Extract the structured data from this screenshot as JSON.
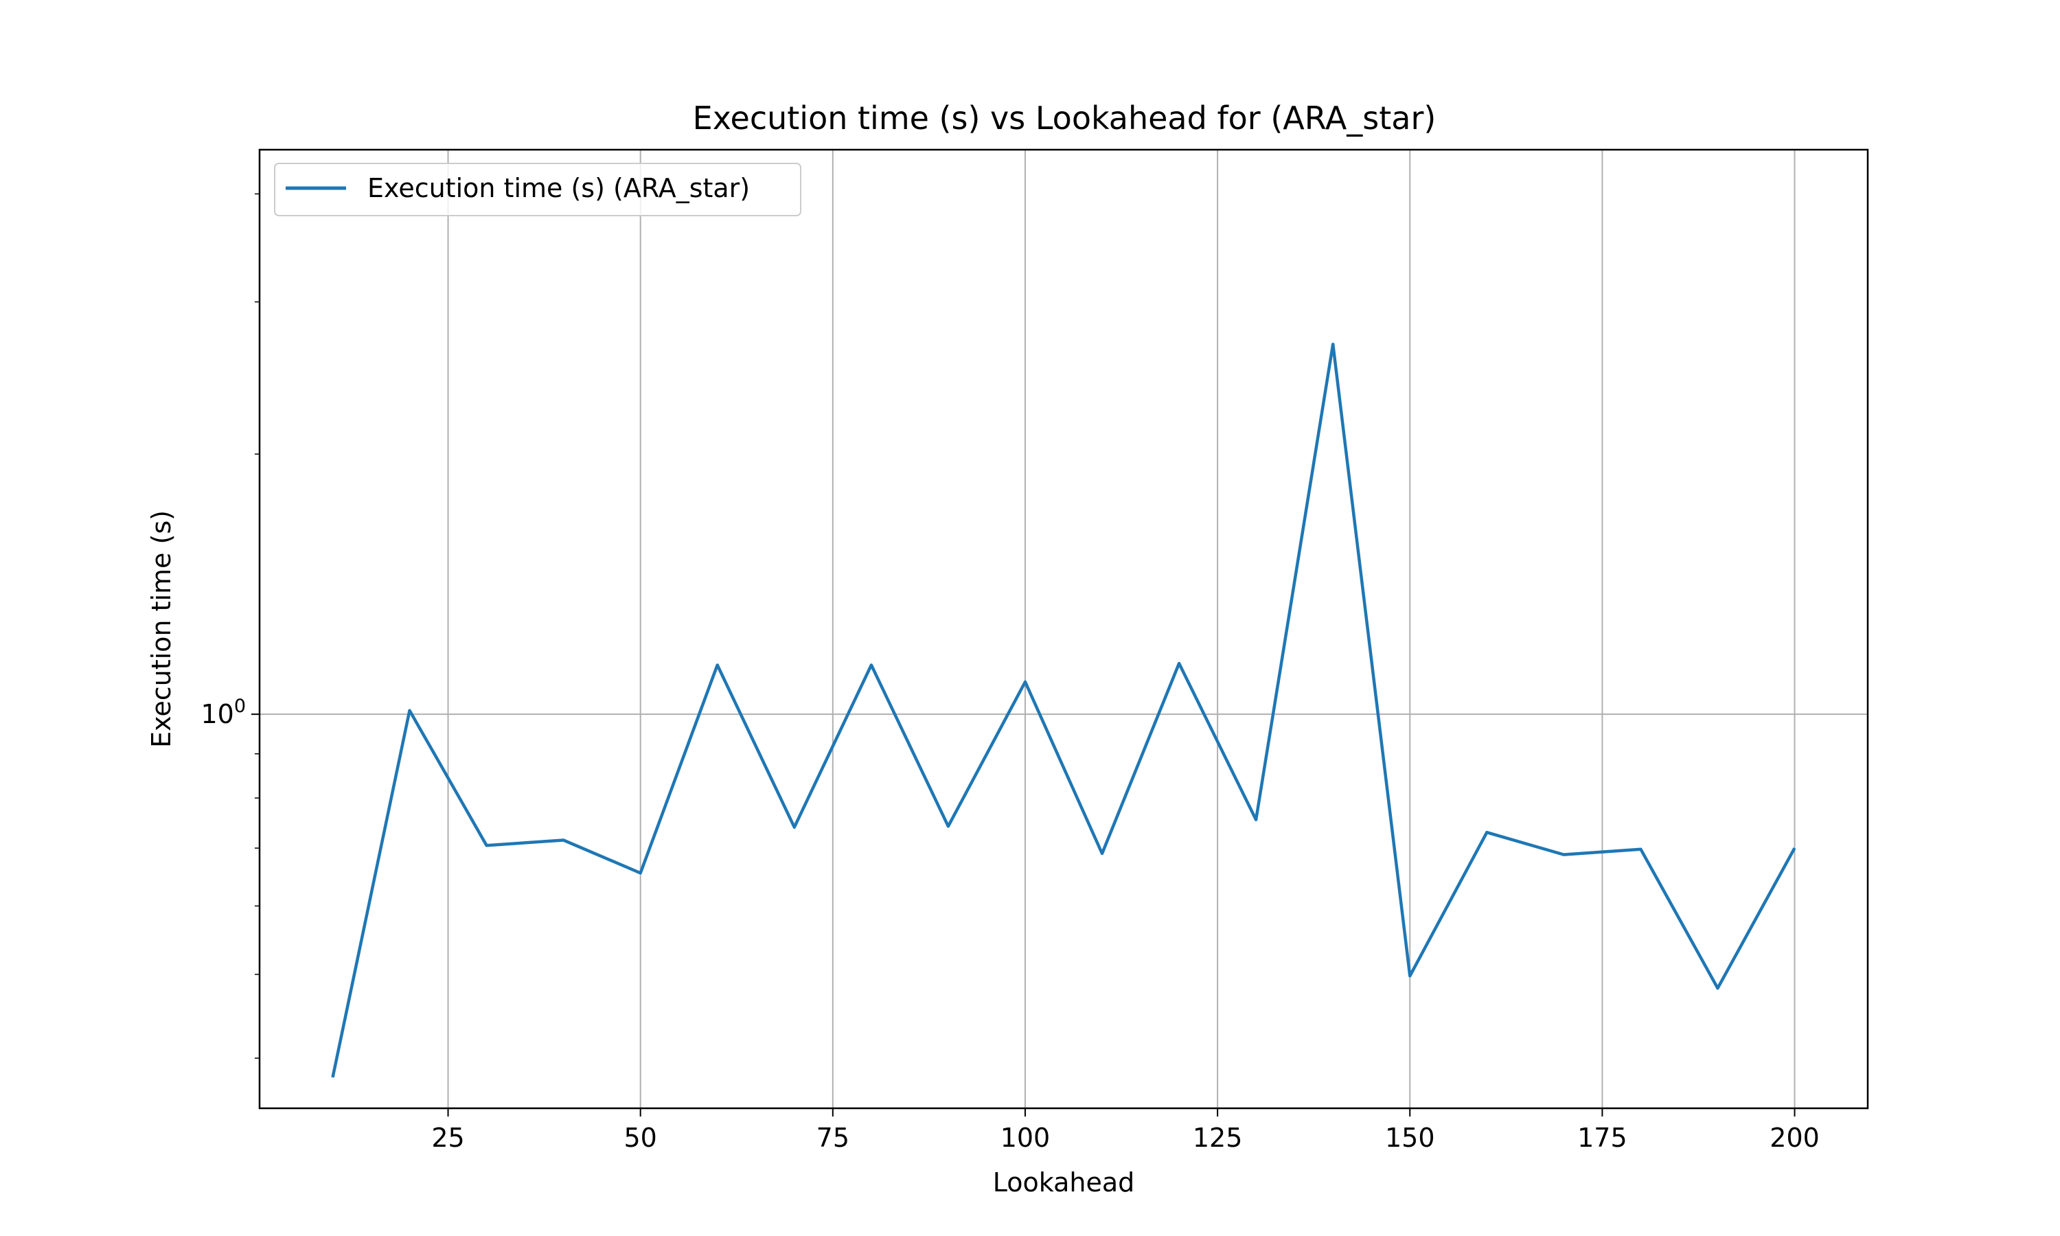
{
  "chart_data": {
    "type": "line",
    "title": "Execution time (s) vs Lookahead for  (ARA_star)",
    "xlabel": "Lookahead",
    "ylabel": "Execution time (s)",
    "yscale": "log",
    "xlim": [
      0.5,
      209.5
    ],
    "ylim": [
      0.35,
      4.5
    ],
    "xticks": [
      25,
      50,
      75,
      100,
      125,
      150,
      175,
      200
    ],
    "xtick_labels": [
      "25",
      "50",
      "75",
      "100",
      "125",
      "150",
      "175",
      "200"
    ],
    "yticks": [
      1
    ],
    "ytick_base": "10",
    "ytick_exponent": "0",
    "grid": true,
    "legend_position": "upper-left",
    "series": [
      {
        "name": "Execution time (s) (ARA_star)",
        "color": "#1f77b4",
        "x": [
          10,
          20,
          30,
          40,
          50,
          60,
          70,
          80,
          90,
          100,
          110,
          120,
          130,
          140,
          150,
          160,
          170,
          180,
          190,
          200
        ],
        "y": [
          0.38,
          1.01,
          0.705,
          0.715,
          0.655,
          1.14,
          0.74,
          1.14,
          0.742,
          1.09,
          0.69,
          1.145,
          0.755,
          2.68,
          0.498,
          0.73,
          0.688,
          0.698,
          0.482,
          0.7
        ]
      }
    ]
  }
}
